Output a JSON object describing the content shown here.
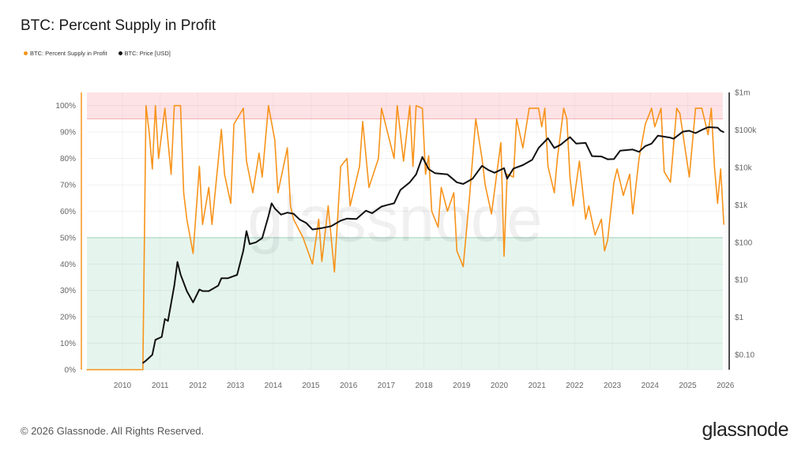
{
  "title": "BTC: Percent Supply in Profit",
  "legend": [
    {
      "label": "BTC: Percent Supply in Profit",
      "color": "#f7931a"
    },
    {
      "label": "BTC: Price [USD]",
      "color": "#111111"
    }
  ],
  "footer": "© 2026 Glassnode. All Rights Reserved.",
  "logo": "glassnode",
  "watermark": "glassnode",
  "chart_data": {
    "type": "line",
    "title": "BTC: Percent Supply in Profit",
    "x_ticks": [
      "2010",
      "2011",
      "2012",
      "2013",
      "2014",
      "2015",
      "2016",
      "2017",
      "2018",
      "2019",
      "2020",
      "2021",
      "2022",
      "2023",
      "2024",
      "2025",
      "2026"
    ],
    "y_left": {
      "ticks": [
        "0%",
        "10%",
        "20%",
        "30%",
        "40%",
        "50%",
        "60%",
        "70%",
        "80%",
        "90%",
        "100%"
      ],
      "range": [
        0,
        105
      ],
      "unit": "%"
    },
    "y_right": {
      "ticks": [
        "$0.10",
        "$1",
        "$10",
        "$100",
        "$1k",
        "$10k",
        "$100k",
        "$1m"
      ],
      "tick_values": [
        0.1,
        1,
        10,
        100,
        1000,
        10000,
        100000,
        1000000
      ],
      "scale": "log",
      "range": [
        0.04,
        1000000
      ]
    },
    "bands": [
      {
        "from": 95,
        "to": 105,
        "color": "#fde3e6",
        "line_color": "#f3a9b1"
      },
      {
        "from": 0,
        "to": 50,
        "color": "#e5f5ee",
        "line_color": "#a9dcc6"
      }
    ],
    "grid": true,
    "legend_position": "top-left",
    "series": [
      {
        "name": "BTC: Percent Supply in Profit",
        "axis": "left",
        "color": "#f7931a",
        "points": [
          [
            "2009-01",
            0
          ],
          [
            "2010-07",
            0
          ],
          [
            "2010-08",
            100
          ],
          [
            "2010-09",
            90
          ],
          [
            "2010-10",
            76
          ],
          [
            "2010-11",
            100
          ],
          [
            "2010-12",
            80
          ],
          [
            "2011-02",
            99
          ],
          [
            "2011-04",
            74
          ],
          [
            "2011-05",
            100
          ],
          [
            "2011-07",
            100
          ],
          [
            "2011-08",
            67
          ],
          [
            "2011-09",
            57
          ],
          [
            "2011-11",
            44
          ],
          [
            "2012-01",
            77
          ],
          [
            "2012-02",
            55
          ],
          [
            "2012-04",
            69
          ],
          [
            "2012-05",
            55
          ],
          [
            "2012-08",
            91
          ],
          [
            "2012-09",
            74
          ],
          [
            "2012-11",
            63
          ],
          [
            "2012-12",
            93
          ],
          [
            "2013-03",
            99
          ],
          [
            "2013-04",
            79
          ],
          [
            "2013-06",
            67
          ],
          [
            "2013-08",
            82
          ],
          [
            "2013-09",
            73
          ],
          [
            "2013-11",
            100
          ],
          [
            "2014-01",
            87
          ],
          [
            "2014-02",
            67
          ],
          [
            "2014-05",
            84
          ],
          [
            "2014-06",
            62
          ],
          [
            "2014-07",
            57
          ],
          [
            "2014-10",
            50
          ],
          [
            "2015-01",
            40
          ],
          [
            "2015-03",
            57
          ],
          [
            "2015-04",
            41
          ],
          [
            "2015-06",
            62
          ],
          [
            "2015-08",
            37
          ],
          [
            "2015-10",
            77
          ],
          [
            "2015-12",
            80
          ],
          [
            "2016-01",
            62
          ],
          [
            "2016-04",
            77
          ],
          [
            "2016-05",
            94
          ],
          [
            "2016-07",
            69
          ],
          [
            "2016-10",
            80
          ],
          [
            "2016-11",
            99
          ],
          [
            "2017-03",
            80
          ],
          [
            "2017-04",
            100
          ],
          [
            "2017-06",
            79
          ],
          [
            "2017-08",
            100
          ],
          [
            "2017-09",
            77
          ],
          [
            "2017-10",
            100
          ],
          [
            "2017-12",
            99
          ],
          [
            "2018-01",
            74
          ],
          [
            "2018-02",
            81
          ],
          [
            "2018-03",
            60
          ],
          [
            "2018-05",
            54
          ],
          [
            "2018-06",
            69
          ],
          [
            "2018-08",
            60
          ],
          [
            "2018-10",
            67
          ],
          [
            "2018-11",
            45
          ],
          [
            "2019-01",
            39
          ],
          [
            "2019-03",
            65
          ],
          [
            "2019-04",
            80
          ],
          [
            "2019-05",
            95
          ],
          [
            "2019-07",
            80
          ],
          [
            "2019-08",
            70
          ],
          [
            "2019-10",
            59
          ],
          [
            "2019-12",
            77
          ],
          [
            "2020-01",
            86
          ],
          [
            "2020-02",
            43
          ],
          [
            "2020-03",
            74
          ],
          [
            "2020-05",
            73
          ],
          [
            "2020-06",
            95
          ],
          [
            "2020-08",
            84
          ],
          [
            "2020-10",
            99
          ],
          [
            "2021-01",
            99
          ],
          [
            "2021-02",
            92
          ],
          [
            "2021-03",
            99
          ],
          [
            "2021-04",
            77
          ],
          [
            "2021-06",
            67
          ],
          [
            "2021-07",
            80
          ],
          [
            "2021-09",
            99
          ],
          [
            "2021-10",
            95
          ],
          [
            "2021-11",
            73
          ],
          [
            "2021-12",
            62
          ],
          [
            "2022-02",
            79
          ],
          [
            "2022-04",
            57
          ],
          [
            "2022-05",
            62
          ],
          [
            "2022-07",
            51
          ],
          [
            "2022-09",
            57
          ],
          [
            "2022-10",
            45
          ],
          [
            "2022-11",
            49
          ],
          [
            "2023-01",
            71
          ],
          [
            "2023-02",
            76
          ],
          [
            "2023-04",
            66
          ],
          [
            "2023-06",
            74
          ],
          [
            "2023-07",
            59
          ],
          [
            "2023-09",
            80
          ],
          [
            "2023-11",
            93
          ],
          [
            "2024-01",
            99
          ],
          [
            "2024-02",
            92
          ],
          [
            "2024-04",
            99
          ],
          [
            "2024-05",
            75
          ],
          [
            "2024-07",
            71
          ],
          [
            "2024-09",
            99
          ],
          [
            "2024-10",
            97
          ],
          [
            "2025-01",
            73
          ],
          [
            "2025-03",
            99
          ],
          [
            "2025-05",
            99
          ],
          [
            "2025-07",
            89
          ],
          [
            "2025-08",
            99
          ],
          [
            "2025-09",
            77
          ],
          [
            "2025-10",
            63
          ],
          [
            "2025-11",
            76
          ],
          [
            "2025-12",
            55
          ]
        ]
      },
      {
        "name": "BTC: Price [USD]",
        "axis": "right",
        "color": "#111111",
        "points": [
          [
            "2010-07",
            0.06
          ],
          [
            "2010-08",
            0.07
          ],
          [
            "2010-10",
            0.1
          ],
          [
            "2010-11",
            0.25
          ],
          [
            "2011-01",
            0.3
          ],
          [
            "2011-02",
            0.9
          ],
          [
            "2011-03",
            0.8
          ],
          [
            "2011-05",
            7
          ],
          [
            "2011-06",
            30
          ],
          [
            "2011-07",
            14
          ],
          [
            "2011-09",
            5
          ],
          [
            "2011-11",
            2.5
          ],
          [
            "2012-01",
            5.5
          ],
          [
            "2012-02",
            5
          ],
          [
            "2012-04",
            5
          ],
          [
            "2012-07",
            7
          ],
          [
            "2012-08",
            11
          ],
          [
            "2012-10",
            11
          ],
          [
            "2013-01",
            13.5
          ],
          [
            "2013-03",
            60
          ],
          [
            "2013-04",
            200
          ],
          [
            "2013-05",
            90
          ],
          [
            "2013-07",
            100
          ],
          [
            "2013-09",
            130
          ],
          [
            "2013-11",
            500
          ],
          [
            "2013-12",
            1100
          ],
          [
            "2014-01",
            800
          ],
          [
            "2014-03",
            550
          ],
          [
            "2014-05",
            620
          ],
          [
            "2014-07",
            580
          ],
          [
            "2014-09",
            400
          ],
          [
            "2014-11",
            330
          ],
          [
            "2015-01",
            220
          ],
          [
            "2015-04",
            240
          ],
          [
            "2015-07",
            270
          ],
          [
            "2015-10",
            380
          ],
          [
            "2015-12",
            430
          ],
          [
            "2016-03",
            420
          ],
          [
            "2016-06",
            700
          ],
          [
            "2016-08",
            600
          ],
          [
            "2016-11",
            900
          ],
          [
            "2017-01",
            1000
          ],
          [
            "2017-03",
            1100
          ],
          [
            "2017-05",
            2500
          ],
          [
            "2017-08",
            4000
          ],
          [
            "2017-10",
            6500
          ],
          [
            "2017-12",
            19000
          ],
          [
            "2018-02",
            9000
          ],
          [
            "2018-04",
            7000
          ],
          [
            "2018-08",
            6500
          ],
          [
            "2018-11",
            4000
          ],
          [
            "2019-01",
            3600
          ],
          [
            "2019-04",
            5000
          ],
          [
            "2019-07",
            11000
          ],
          [
            "2019-09",
            8500
          ],
          [
            "2019-11",
            7200
          ],
          [
            "2020-02",
            9500
          ],
          [
            "2020-03",
            5000
          ],
          [
            "2020-05",
            9300
          ],
          [
            "2020-08",
            11500
          ],
          [
            "2020-11",
            16000
          ],
          [
            "2021-01",
            33000
          ],
          [
            "2021-04",
            60000
          ],
          [
            "2021-06",
            33000
          ],
          [
            "2021-08",
            40000
          ],
          [
            "2021-11",
            64000
          ],
          [
            "2022-01",
            43000
          ],
          [
            "2022-04",
            45000
          ],
          [
            "2022-06",
            20000
          ],
          [
            "2022-09",
            19500
          ],
          [
            "2022-11",
            16500
          ],
          [
            "2023-01",
            16600
          ],
          [
            "2023-03",
            28000
          ],
          [
            "2023-07",
            30000
          ],
          [
            "2023-09",
            26000
          ],
          [
            "2023-11",
            37000
          ],
          [
            "2024-01",
            43000
          ],
          [
            "2024-03",
            70000
          ],
          [
            "2024-07",
            62000
          ],
          [
            "2024-08",
            58000
          ],
          [
            "2024-11",
            90000
          ],
          [
            "2025-01",
            95000
          ],
          [
            "2025-03",
            82000
          ],
          [
            "2025-05",
            100000
          ],
          [
            "2025-07",
            118000
          ],
          [
            "2025-10",
            115000
          ],
          [
            "2025-11",
            95000
          ],
          [
            "2025-12",
            87000
          ]
        ]
      }
    ]
  }
}
